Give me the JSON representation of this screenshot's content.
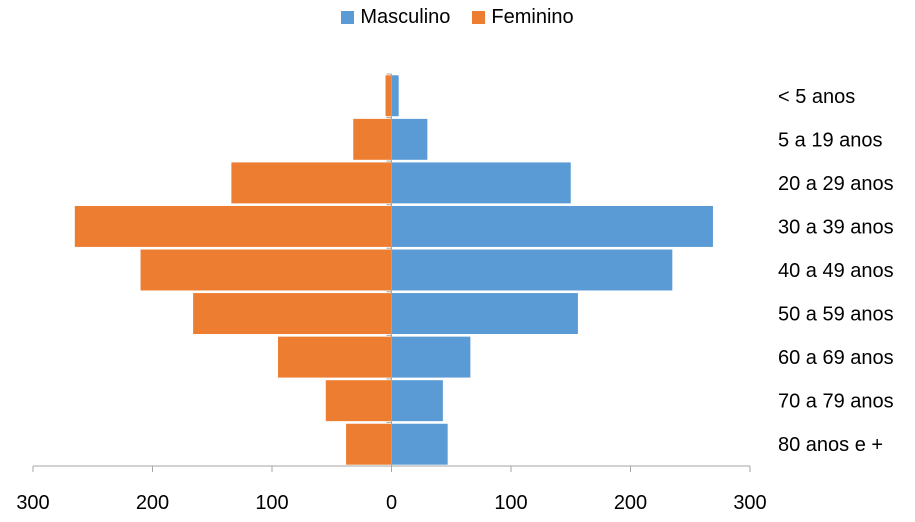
{
  "legend": {
    "male_label": "Masculino",
    "female_label": "Feminino"
  },
  "colors": {
    "male": "#5b9bd5",
    "female": "#ed7d31",
    "axis": "#a6a6a6"
  },
  "chart_data": {
    "type": "bar",
    "orientation": "horizontal-population-pyramid",
    "categories": [
      "< 5 anos",
      "5 a 19 anos",
      "20 a 29 anos",
      "30 a 39 anos",
      "40 a 49 anos",
      "50 a 59 anos",
      "60 a 69 anos",
      "70 a 79 anos",
      "80 anos e +"
    ],
    "series": [
      {
        "name": "Masculino",
        "values": [
          6,
          30,
          150,
          269,
          235,
          156,
          66,
          43,
          47
        ]
      },
      {
        "name": "Feminino",
        "values": [
          5,
          32,
          134,
          265,
          210,
          166,
          95,
          55,
          38
        ]
      }
    ],
    "xlim": [
      -300,
      300
    ],
    "xticks": [
      -300,
      -200,
      -100,
      0,
      100,
      200,
      300
    ],
    "xtick_labels": [
      "300",
      "200",
      "100",
      "0",
      "100",
      "200",
      "300"
    ],
    "legend_position": "top-center",
    "grid": false
  }
}
